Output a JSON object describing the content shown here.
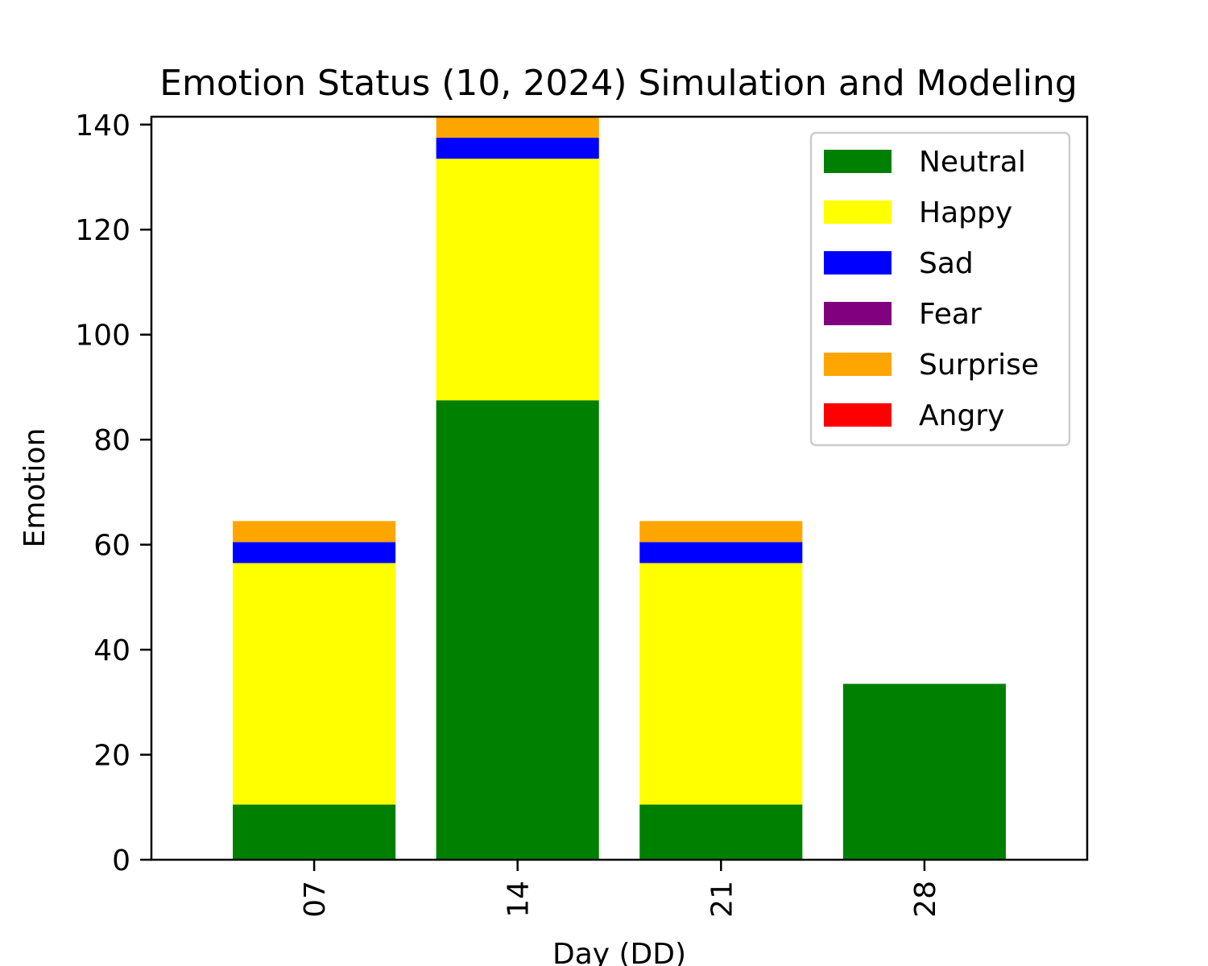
{
  "chart_data": {
    "type": "bar",
    "stacked": true,
    "title": "Emotion Status (10, 2024) Simulation and Modeling",
    "xlabel": "Day (DD)",
    "ylabel": "Emotion",
    "categories": [
      "07",
      "14",
      "21",
      "28"
    ],
    "ylim": [
      0,
      141.5
    ],
    "yticks": [
      0,
      20,
      40,
      60,
      80,
      100,
      120,
      140
    ],
    "grid": false,
    "legend_position": "top-right",
    "series": [
      {
        "name": "Neutral",
        "color": "#008000",
        "values": [
          10.5,
          87.5,
          10.5,
          33.5
        ]
      },
      {
        "name": "Happy",
        "color": "#ffff00",
        "values": [
          46,
          46,
          46,
          0
        ]
      },
      {
        "name": "Sad",
        "color": "#0000ff",
        "values": [
          4,
          4,
          4,
          0
        ]
      },
      {
        "name": "Fear",
        "color": "#800080",
        "values": [
          0,
          0,
          0,
          0
        ]
      },
      {
        "name": "Surprise",
        "color": "#ffa500",
        "values": [
          4,
          4,
          4,
          0
        ]
      },
      {
        "name": "Angry",
        "color": "#ff0000",
        "values": [
          0,
          0,
          0,
          0
        ]
      }
    ]
  }
}
